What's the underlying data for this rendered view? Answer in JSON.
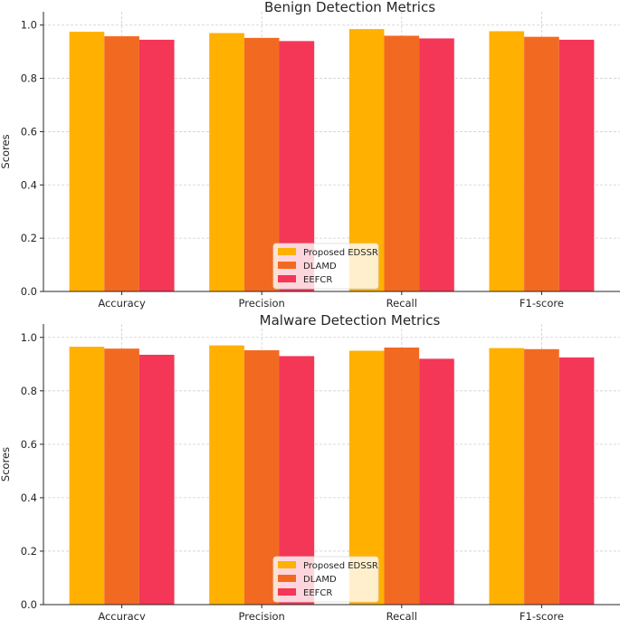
{
  "chart_data": [
    {
      "type": "bar",
      "title": "Benign Detection Metrics",
      "xlabel": "",
      "ylabel": "Scores",
      "ylim": [
        0,
        1.05
      ],
      "yticks": [
        "0.0",
        "0.2",
        "0.4",
        "0.6",
        "0.8",
        "1.0"
      ],
      "grid": true,
      "legend_position": "bottom-center",
      "categories": [
        "Accuracy",
        "Precision",
        "Recall",
        "F1-score"
      ],
      "series": [
        {
          "name": "Proposed EDSSR",
          "color": "#FFB000",
          "values": [
            0.975,
            0.97,
            0.985,
            0.977
          ]
        },
        {
          "name": "DLAMD",
          "color": "#F26A21",
          "values": [
            0.958,
            0.952,
            0.96,
            0.956
          ]
        },
        {
          "name": "EEFCR",
          "color": "#F43657",
          "values": [
            0.945,
            0.94,
            0.95,
            0.945
          ]
        }
      ]
    },
    {
      "type": "bar",
      "title": "Malware Detection Metrics",
      "xlabel": "",
      "ylabel": "Scores",
      "ylim": [
        0,
        1.05
      ],
      "yticks": [
        "0.0",
        "0.2",
        "0.4",
        "0.6",
        "0.8",
        "1.0"
      ],
      "grid": true,
      "legend_position": "bottom-center",
      "categories": [
        "Accuracy",
        "Precision",
        "Recall",
        "F1-score"
      ],
      "series": [
        {
          "name": "Proposed EDSSR",
          "color": "#FFB000",
          "values": [
            0.965,
            0.97,
            0.95,
            0.96
          ]
        },
        {
          "name": "DLAMD",
          "color": "#F26A21",
          "values": [
            0.958,
            0.952,
            0.962,
            0.956
          ]
        },
        {
          "name": "EEFCR",
          "color": "#F43657",
          "values": [
            0.935,
            0.93,
            0.92,
            0.925
          ]
        }
      ]
    }
  ]
}
